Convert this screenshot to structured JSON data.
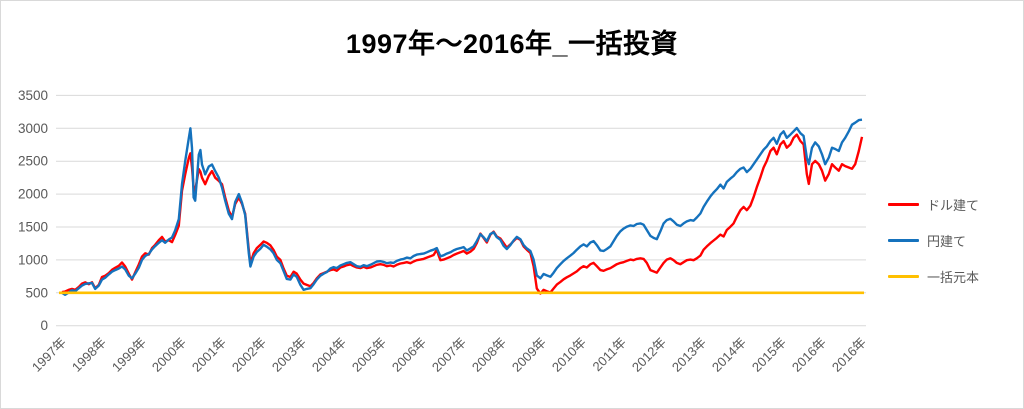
{
  "chart_data": {
    "type": "line",
    "title": "1997年～2016年_一括投資",
    "xlabel": "",
    "ylabel": "",
    "ylim": [
      0,
      3500
    ],
    "grid": "horizontal",
    "legend_position": "right",
    "y_ticks": [
      0,
      500,
      1000,
      1500,
      2000,
      2500,
      3000,
      3500
    ],
    "x_tick_labels": [
      "1997年",
      "1998年",
      "1999年",
      "2000年",
      "2001年",
      "2002年",
      "2003年",
      "2004年",
      "2005年",
      "2006年",
      "2007年",
      "2008年",
      "2009年",
      "2010年",
      "2011年",
      "2012年",
      "2013年",
      "2014年",
      "2015年",
      "2016年",
      "2016年"
    ],
    "legend": [
      {
        "label": "ドル建て",
        "color": "#FF0000"
      },
      {
        "label": "円建て",
        "color": "#1572BD"
      },
      {
        "label": "一括元本",
        "color": "#FFC000"
      }
    ],
    "principal": {
      "label": "一括元本",
      "value": 500
    },
    "columns": [
      "year",
      "dollar_value",
      "yen_value"
    ],
    "points": [
      [
        1997.0,
        510,
        500
      ],
      [
        1997.08,
        520,
        470
      ],
      [
        1997.17,
        545,
        505
      ],
      [
        1997.25,
        560,
        540
      ],
      [
        1997.33,
        545,
        525
      ],
      [
        1997.42,
        590,
        570
      ],
      [
        1997.5,
        640,
        610
      ],
      [
        1997.58,
        660,
        635
      ],
      [
        1997.67,
        630,
        645
      ],
      [
        1997.75,
        660,
        650
      ],
      [
        1997.83,
        570,
        560
      ],
      [
        1997.92,
        620,
        610
      ],
      [
        1998.0,
        740,
        700
      ],
      [
        1998.08,
        760,
        730
      ],
      [
        1998.17,
        800,
        780
      ],
      [
        1998.25,
        850,
        820
      ],
      [
        1998.33,
        880,
        845
      ],
      [
        1998.42,
        910,
        870
      ],
      [
        1998.5,
        960,
        900
      ],
      [
        1998.58,
        900,
        855
      ],
      [
        1998.67,
        790,
        760
      ],
      [
        1998.75,
        700,
        720
      ],
      [
        1998.83,
        810,
        790
      ],
      [
        1998.92,
        930,
        880
      ],
      [
        1999.0,
        1050,
        1000
      ],
      [
        1999.08,
        1100,
        1060
      ],
      [
        1999.17,
        1080,
        1090
      ],
      [
        1999.25,
        1180,
        1160
      ],
      [
        1999.33,
        1230,
        1210
      ],
      [
        1999.42,
        1300,
        1260
      ],
      [
        1999.5,
        1350,
        1300
      ],
      [
        1999.58,
        1280,
        1260
      ],
      [
        1999.67,
        1300,
        1310
      ],
      [
        1999.75,
        1270,
        1340
      ],
      [
        1999.83,
        1380,
        1450
      ],
      [
        1999.92,
        1520,
        1620
      ],
      [
        2000.0,
        2050,
        2150
      ],
      [
        2000.08,
        2300,
        2500
      ],
      [
        2000.17,
        2550,
        2850
      ],
      [
        2000.21,
        2620,
        3000
      ],
      [
        2000.25,
        2400,
        2700
      ],
      [
        2000.29,
        2100,
        1950
      ],
      [
        2000.33,
        2050,
        1900
      ],
      [
        2000.42,
        2380,
        2600
      ],
      [
        2000.46,
        2340,
        2670
      ],
      [
        2000.5,
        2250,
        2450
      ],
      [
        2000.58,
        2150,
        2300
      ],
      [
        2000.67,
        2280,
        2420
      ],
      [
        2000.75,
        2350,
        2450
      ],
      [
        2000.83,
        2250,
        2350
      ],
      [
        2000.92,
        2200,
        2250
      ],
      [
        2001.0,
        2150,
        2100
      ],
      [
        2001.08,
        1950,
        1900
      ],
      [
        2001.17,
        1750,
        1700
      ],
      [
        2001.25,
        1650,
        1620
      ],
      [
        2001.33,
        1850,
        1880
      ],
      [
        2001.42,
        1950,
        2000
      ],
      [
        2001.5,
        1850,
        1870
      ],
      [
        2001.58,
        1700,
        1680
      ],
      [
        2001.67,
        1150,
        1100
      ],
      [
        2001.71,
        950,
        900
      ],
      [
        2001.79,
        1100,
        1050
      ],
      [
        2001.87,
        1180,
        1120
      ],
      [
        2001.96,
        1230,
        1170
      ],
      [
        2002.04,
        1280,
        1230
      ],
      [
        2002.12,
        1260,
        1200
      ],
      [
        2002.21,
        1220,
        1160
      ],
      [
        2002.29,
        1150,
        1100
      ],
      [
        2002.37,
        1050,
        1000
      ],
      [
        2002.46,
        1000,
        950
      ],
      [
        2002.54,
        870,
        830
      ],
      [
        2002.62,
        760,
        710
      ],
      [
        2002.71,
        740,
        700
      ],
      [
        2002.79,
        820,
        780
      ],
      [
        2002.87,
        790,
        740
      ],
      [
        2002.96,
        700,
        620
      ],
      [
        2003.04,
        640,
        545
      ],
      [
        2003.12,
        620,
        560
      ],
      [
        2003.21,
        600,
        570
      ],
      [
        2003.29,
        650,
        630
      ],
      [
        2003.37,
        720,
        700
      ],
      [
        2003.46,
        780,
        760
      ],
      [
        2003.54,
        800,
        790
      ],
      [
        2003.62,
        820,
        815
      ],
      [
        2003.71,
        845,
        870
      ],
      [
        2003.79,
        855,
        890
      ],
      [
        2003.87,
        835,
        875
      ],
      [
        2003.96,
        885,
        915
      ],
      [
        2004.04,
        900,
        935
      ],
      [
        2004.12,
        920,
        955
      ],
      [
        2004.21,
        930,
        965
      ],
      [
        2004.29,
        905,
        935
      ],
      [
        2004.37,
        885,
        905
      ],
      [
        2004.46,
        875,
        895
      ],
      [
        2004.54,
        895,
        920
      ],
      [
        2004.62,
        875,
        905
      ],
      [
        2004.71,
        885,
        925
      ],
      [
        2004.79,
        905,
        950
      ],
      [
        2004.87,
        925,
        975
      ],
      [
        2004.96,
        935,
        980
      ],
      [
        2005.04,
        925,
        970
      ],
      [
        2005.12,
        905,
        950
      ],
      [
        2005.21,
        915,
        960
      ],
      [
        2005.29,
        900,
        955
      ],
      [
        2005.37,
        925,
        985
      ],
      [
        2005.46,
        945,
        1005
      ],
      [
        2005.54,
        955,
        1015
      ],
      [
        2005.62,
        965,
        1035
      ],
      [
        2005.71,
        950,
        1025
      ],
      [
        2005.79,
        975,
        1060
      ],
      [
        2005.87,
        995,
        1080
      ],
      [
        2005.96,
        1005,
        1090
      ],
      [
        2006.04,
        1015,
        1095
      ],
      [
        2006.12,
        1035,
        1115
      ],
      [
        2006.21,
        1055,
        1140
      ],
      [
        2006.29,
        1075,
        1155
      ],
      [
        2006.37,
        1155,
        1180
      ],
      [
        2006.42,
        1060,
        1110
      ],
      [
        2006.46,
        995,
        1055
      ],
      [
        2006.54,
        1005,
        1070
      ],
      [
        2006.62,
        1025,
        1095
      ],
      [
        2006.71,
        1045,
        1115
      ],
      [
        2006.79,
        1075,
        1145
      ],
      [
        2006.87,
        1095,
        1165
      ],
      [
        2006.96,
        1115,
        1180
      ],
      [
        2007.04,
        1135,
        1195
      ],
      [
        2007.12,
        1095,
        1145
      ],
      [
        2007.21,
        1125,
        1175
      ],
      [
        2007.29,
        1165,
        1205
      ],
      [
        2007.37,
        1255,
        1285
      ],
      [
        2007.46,
        1400,
        1390
      ],
      [
        2007.54,
        1335,
        1345
      ],
      [
        2007.62,
        1265,
        1285
      ],
      [
        2007.71,
        1385,
        1395
      ],
      [
        2007.79,
        1430,
        1420
      ],
      [
        2007.87,
        1355,
        1345
      ],
      [
        2007.96,
        1325,
        1305
      ],
      [
        2008.04,
        1255,
        1215
      ],
      [
        2008.12,
        1185,
        1165
      ],
      [
        2008.21,
        1235,
        1225
      ],
      [
        2008.29,
        1285,
        1295
      ],
      [
        2008.37,
        1335,
        1350
      ],
      [
        2008.46,
        1305,
        1315
      ],
      [
        2008.54,
        1205,
        1225
      ],
      [
        2008.62,
        1155,
        1175
      ],
      [
        2008.71,
        1105,
        1135
      ],
      [
        2008.79,
        905,
        1005
      ],
      [
        2008.87,
        565,
        765
      ],
      [
        2008.96,
        490,
        720
      ],
      [
        2009.04,
        545,
        785
      ],
      [
        2009.12,
        525,
        765
      ],
      [
        2009.21,
        505,
        745
      ],
      [
        2009.29,
        565,
        805
      ],
      [
        2009.37,
        625,
        875
      ],
      [
        2009.46,
        665,
        935
      ],
      [
        2009.54,
        705,
        985
      ],
      [
        2009.62,
        735,
        1025
      ],
      [
        2009.71,
        765,
        1065
      ],
      [
        2009.79,
        795,
        1105
      ],
      [
        2009.87,
        825,
        1155
      ],
      [
        2009.96,
        875,
        1205
      ],
      [
        2010.04,
        905,
        1235
      ],
      [
        2010.12,
        885,
        1205
      ],
      [
        2010.21,
        935,
        1265
      ],
      [
        2010.29,
        955,
        1285
      ],
      [
        2010.37,
        905,
        1225
      ],
      [
        2010.46,
        845,
        1145
      ],
      [
        2010.54,
        835,
        1135
      ],
      [
        2010.62,
        855,
        1165
      ],
      [
        2010.71,
        875,
        1205
      ],
      [
        2010.79,
        905,
        1285
      ],
      [
        2010.87,
        935,
        1365
      ],
      [
        2010.96,
        955,
        1435
      ],
      [
        2011.04,
        965,
        1475
      ],
      [
        2011.12,
        985,
        1505
      ],
      [
        2011.21,
        1005,
        1525
      ],
      [
        2011.29,
        995,
        1515
      ],
      [
        2011.37,
        1015,
        1545
      ],
      [
        2011.46,
        1025,
        1555
      ],
      [
        2011.54,
        1015,
        1535
      ],
      [
        2011.62,
        955,
        1455
      ],
      [
        2011.71,
        845,
        1365
      ],
      [
        2011.79,
        825,
        1335
      ],
      [
        2011.87,
        805,
        1315
      ],
      [
        2011.96,
        885,
        1435
      ],
      [
        2012.04,
        955,
        1555
      ],
      [
        2012.12,
        1005,
        1605
      ],
      [
        2012.21,
        1025,
        1625
      ],
      [
        2012.29,
        995,
        1585
      ],
      [
        2012.37,
        955,
        1535
      ],
      [
        2012.46,
        935,
        1515
      ],
      [
        2012.54,
        965,
        1555
      ],
      [
        2012.62,
        995,
        1585
      ],
      [
        2012.71,
        1005,
        1605
      ],
      [
        2012.79,
        995,
        1595
      ],
      [
        2012.87,
        1025,
        1645
      ],
      [
        2012.96,
        1065,
        1705
      ],
      [
        2013.04,
        1155,
        1805
      ],
      [
        2013.12,
        1205,
        1885
      ],
      [
        2013.21,
        1255,
        1965
      ],
      [
        2013.29,
        1295,
        2025
      ],
      [
        2013.37,
        1335,
        2075
      ],
      [
        2013.46,
        1385,
        2145
      ],
      [
        2013.54,
        1355,
        2085
      ],
      [
        2013.62,
        1455,
        2185
      ],
      [
        2013.71,
        1505,
        2235
      ],
      [
        2013.79,
        1555,
        2275
      ],
      [
        2013.87,
        1655,
        2335
      ],
      [
        2013.96,
        1755,
        2385
      ],
      [
        2014.04,
        1805,
        2405
      ],
      [
        2014.12,
        1755,
        2335
      ],
      [
        2014.21,
        1825,
        2385
      ],
      [
        2014.29,
        1955,
        2455
      ],
      [
        2014.37,
        2105,
        2525
      ],
      [
        2014.46,
        2255,
        2605
      ],
      [
        2014.54,
        2405,
        2675
      ],
      [
        2014.62,
        2505,
        2725
      ],
      [
        2014.71,
        2655,
        2805
      ],
      [
        2014.79,
        2705,
        2855
      ],
      [
        2014.87,
        2605,
        2765
      ],
      [
        2014.96,
        2755,
        2905
      ],
      [
        2015.04,
        2805,
        2955
      ],
      [
        2015.12,
        2705,
        2855
      ],
      [
        2015.21,
        2755,
        2905
      ],
      [
        2015.29,
        2855,
        2955
      ],
      [
        2015.37,
        2905,
        3005
      ],
      [
        2015.46,
        2805,
        2925
      ],
      [
        2015.54,
        2755,
        2885
      ],
      [
        2015.62,
        2305,
        2555
      ],
      [
        2015.67,
        2155,
        2455
      ],
      [
        2015.75,
        2455,
        2705
      ],
      [
        2015.83,
        2505,
        2785
      ],
      [
        2015.92,
        2455,
        2725
      ],
      [
        2016.0,
        2355,
        2605
      ],
      [
        2016.08,
        2205,
        2455
      ],
      [
        2016.17,
        2305,
        2555
      ],
      [
        2016.25,
        2455,
        2705
      ],
      [
        2016.33,
        2405,
        2685
      ],
      [
        2016.42,
        2355,
        2655
      ],
      [
        2016.5,
        2455,
        2785
      ],
      [
        2016.58,
        2425,
        2855
      ],
      [
        2016.67,
        2405,
        2955
      ],
      [
        2016.75,
        2385,
        3055
      ],
      [
        2016.83,
        2455,
        3085
      ],
      [
        2016.92,
        2655,
        3125
      ],
      [
        2017.0,
        2870,
        3130
      ]
    ],
    "colors": {
      "gridline": "#d9d9d9",
      "tick_label": "#595959",
      "dollar_series": "#FF0000",
      "yen_series": "#1572BD",
      "principal_line": "#FFC000"
    }
  }
}
